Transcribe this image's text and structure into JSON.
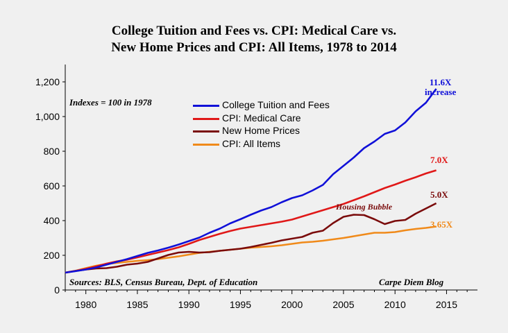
{
  "chart_data": {
    "type": "line",
    "title": "College Tuition and Fees vs. CPI: Medical Care vs.",
    "subtitle": "New Home Prices and CPI: All Items, 1978 to 2014",
    "xlabel": "",
    "ylabel": "",
    "xlim": [
      1978,
      2018
    ],
    "ylim": [
      0,
      1300
    ],
    "x_ticks": [
      1980,
      1985,
      1990,
      1995,
      2000,
      2005,
      2010,
      2015
    ],
    "y_ticks": [
      0,
      200,
      400,
      600,
      800,
      1000,
      1200
    ],
    "y_tick_labels": [
      "0",
      "200",
      "400",
      "600",
      "800",
      "1,000",
      "1,200"
    ],
    "grid": false,
    "legend_position": "top-center",
    "x": [
      1978,
      1979,
      1980,
      1981,
      1982,
      1983,
      1984,
      1985,
      1986,
      1987,
      1988,
      1989,
      1990,
      1991,
      1992,
      1993,
      1994,
      1995,
      1996,
      1997,
      1998,
      1999,
      2000,
      2001,
      2002,
      2003,
      2004,
      2005,
      2006,
      2007,
      2008,
      2009,
      2010,
      2011,
      2012,
      2013,
      2014
    ],
    "series": [
      {
        "name": "College Tuition and Fees",
        "color": "#1010d8",
        "values": [
          100,
          109,
          118,
          130,
          146,
          162,
          178,
          196,
          214,
          228,
          244,
          262,
          282,
          302,
          330,
          354,
          384,
          408,
          434,
          458,
          478,
          506,
          530,
          546,
          574,
          606,
          668,
          716,
          764,
          818,
          856,
          900,
          920,
          966,
          1030,
          1080,
          1160
        ]
      },
      {
        "name": "CPI: Medical Care",
        "color": "#e01818",
        "values": [
          100,
          110,
          122,
          136,
          152,
          165,
          175,
          188,
          202,
          216,
          230,
          246,
          266,
          288,
          306,
          324,
          340,
          354,
          364,
          374,
          384,
          394,
          406,
          424,
          442,
          460,
          478,
          496,
          518,
          540,
          564,
          588,
          608,
          630,
          650,
          672,
          690
        ]
      },
      {
        "name": "New Home Prices",
        "color": "#7a0b0b",
        "values": [
          100,
          110,
          118,
          124,
          126,
          134,
          146,
          152,
          162,
          182,
          202,
          216,
          220,
          216,
          218,
          226,
          232,
          238,
          248,
          260,
          272,
          286,
          296,
          306,
          330,
          342,
          386,
          422,
          434,
          432,
          408,
          380,
          398,
          404,
          440,
          470,
          500
        ]
      },
      {
        "name": "CPI: All Items",
        "color": "#f08a1a",
        "values": [
          100,
          111,
          126,
          140,
          150,
          156,
          162,
          168,
          172,
          178,
          186,
          194,
          204,
          214,
          220,
          226,
          232,
          238,
          244,
          248,
          252,
          258,
          266,
          274,
          278,
          284,
          292,
          300,
          310,
          320,
          330,
          330,
          334,
          344,
          352,
          358,
          366
        ]
      }
    ],
    "annotations": [
      {
        "text": "11.6X",
        "text2": "increase",
        "color": "#1010d8"
      },
      {
        "text": "7.0X",
        "color": "#e01818"
      },
      {
        "text": "5.0X",
        "color": "#7a0b0b"
      },
      {
        "text": "3.65X",
        "color": "#f08a1a"
      },
      {
        "text": "Housing Bubble",
        "color": "#7a0b0b"
      }
    ],
    "note": "Indexes = 100 in 1978",
    "source": "Sources: BLS, Census Bureau, Dept. of Education",
    "credit": "Carpe Diem Blog"
  }
}
